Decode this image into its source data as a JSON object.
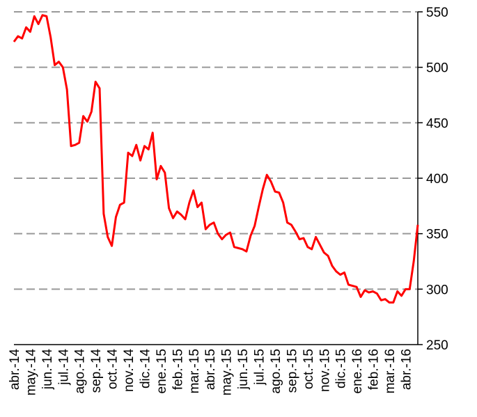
{
  "chart_data": {
    "type": "line",
    "categories": [
      "abr.-14",
      null,
      null,
      null,
      "may.-14",
      null,
      null,
      null,
      "jun.-14",
      null,
      null,
      null,
      "jul.-14",
      null,
      null,
      null,
      "ago.-14",
      null,
      null,
      null,
      "sep.-14",
      null,
      null,
      null,
      "oct.-14",
      null,
      null,
      null,
      "nov.-14",
      null,
      null,
      null,
      "dic.-14",
      null,
      null,
      null,
      "ene.-15",
      null,
      null,
      null,
      "feb.-15",
      null,
      null,
      null,
      "mar.-15",
      null,
      null,
      null,
      "abr.-15",
      null,
      null,
      null,
      "may.-15",
      null,
      null,
      null,
      "jun.-15",
      null,
      null,
      null,
      "jul.-15",
      null,
      null,
      null,
      "ago.-15",
      null,
      null,
      null,
      "sep.-15",
      null,
      null,
      null,
      "oct.-15",
      null,
      null,
      null,
      "nov.-15",
      null,
      null,
      null,
      "dic.-15",
      null,
      null,
      null,
      "ene.-16",
      null,
      null,
      null,
      "feb.-16",
      null,
      null,
      null,
      "mar.-16",
      null,
      null,
      null,
      "abr.-16",
      null,
      null,
      null
    ],
    "series": [
      {
        "color": "#ff0000",
        "values": [
          523,
          528,
          526,
          536,
          532,
          546,
          539,
          547,
          546,
          527,
          502,
          505,
          500,
          480,
          429,
          430,
          432,
          456,
          451,
          460,
          487,
          481,
          368,
          347,
          339,
          365,
          376,
          378,
          423,
          420,
          430,
          416,
          429,
          426,
          441,
          399,
          411,
          405,
          373,
          364,
          370,
          367,
          363,
          378,
          389,
          374,
          378,
          354,
          358,
          360,
          350,
          345,
          349,
          351,
          338,
          337,
          336,
          334,
          348,
          357,
          374,
          390,
          403,
          397,
          388,
          387,
          378,
          360,
          358,
          352,
          345,
          346,
          338,
          336,
          347,
          340,
          333,
          330,
          321,
          316,
          313,
          315,
          304,
          303,
          302,
          293,
          299,
          297,
          298,
          296,
          290,
          291,
          288,
          288,
          298,
          294,
          300,
          300,
          325,
          358
        ]
      }
    ],
    "ylim": [
      250,
      550
    ],
    "yticks": [
      250,
      300,
      350,
      400,
      450,
      500,
      550
    ],
    "grid": true,
    "y_axis_side": "right"
  }
}
